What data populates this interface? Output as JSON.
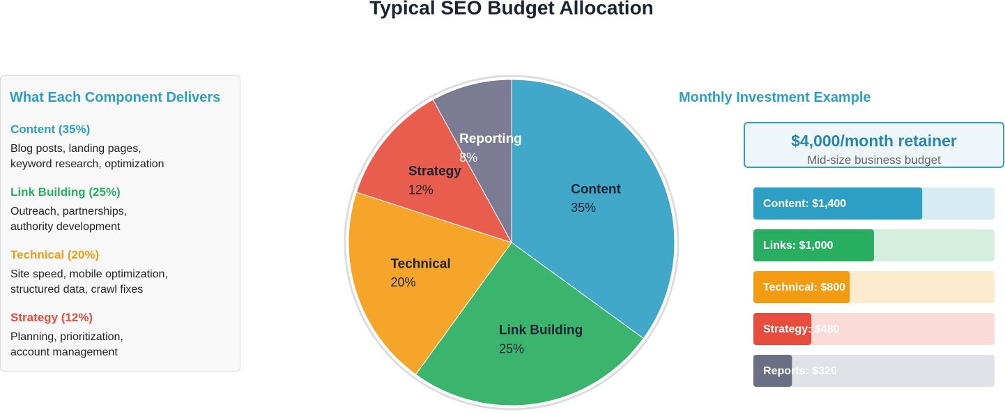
{
  "title": "Typical SEO Budget Allocation",
  "left_panel": {
    "title": "What Each Component Delivers",
    "items": [
      {
        "heading": "Content (35%)",
        "color": "#2e9fc4",
        "lines": [
          "Blog posts, landing pages,",
          "keyword research, optimization"
        ]
      },
      {
        "heading": "Link Building (25%)",
        "color": "#27ae60",
        "lines": [
          "Outreach, partnerships,",
          "authority development"
        ]
      },
      {
        "heading": "Technical (20%)",
        "color": "#f39c12",
        "lines": [
          "Site speed, mobile optimization,",
          "structured data, crawl fixes"
        ]
      },
      {
        "heading": "Strategy (12%)",
        "color": "#e74c3c",
        "lines": [
          "Planning, prioritization,",
          "account management"
        ]
      }
    ]
  },
  "right_panel": {
    "title": "Monthly Investment Example",
    "retainer": "$4,000/month retainer",
    "retainer_note": "Mid-size business budget"
  },
  "chart_data": [
    {
      "type": "pie",
      "categories": [
        "Content",
        "Link Building",
        "Technical",
        "Strategy",
        "Reporting"
      ],
      "values": [
        35,
        25,
        20,
        12,
        8
      ],
      "value_labels": [
        "35%",
        "25%",
        "20%",
        "12%",
        "8%"
      ],
      "colors": [
        "#42a8c9",
        "#3bb56e",
        "#f5a52a",
        "#e85d4e",
        "#7b7c93"
      ]
    },
    {
      "type": "hbar",
      "values": [
        1400,
        1000,
        800,
        480,
        320
      ],
      "value_labels": [
        "Content: $1,400",
        "Links: $1,000",
        "Technical: $800",
        "Strategy: $480",
        "Reports: $320"
      ],
      "colors": [
        "#2e9fc4",
        "#27ae60",
        "#f39c12",
        "#e74c3c",
        "#6b6f86"
      ],
      "xlim": [
        0,
        2000
      ]
    }
  ]
}
